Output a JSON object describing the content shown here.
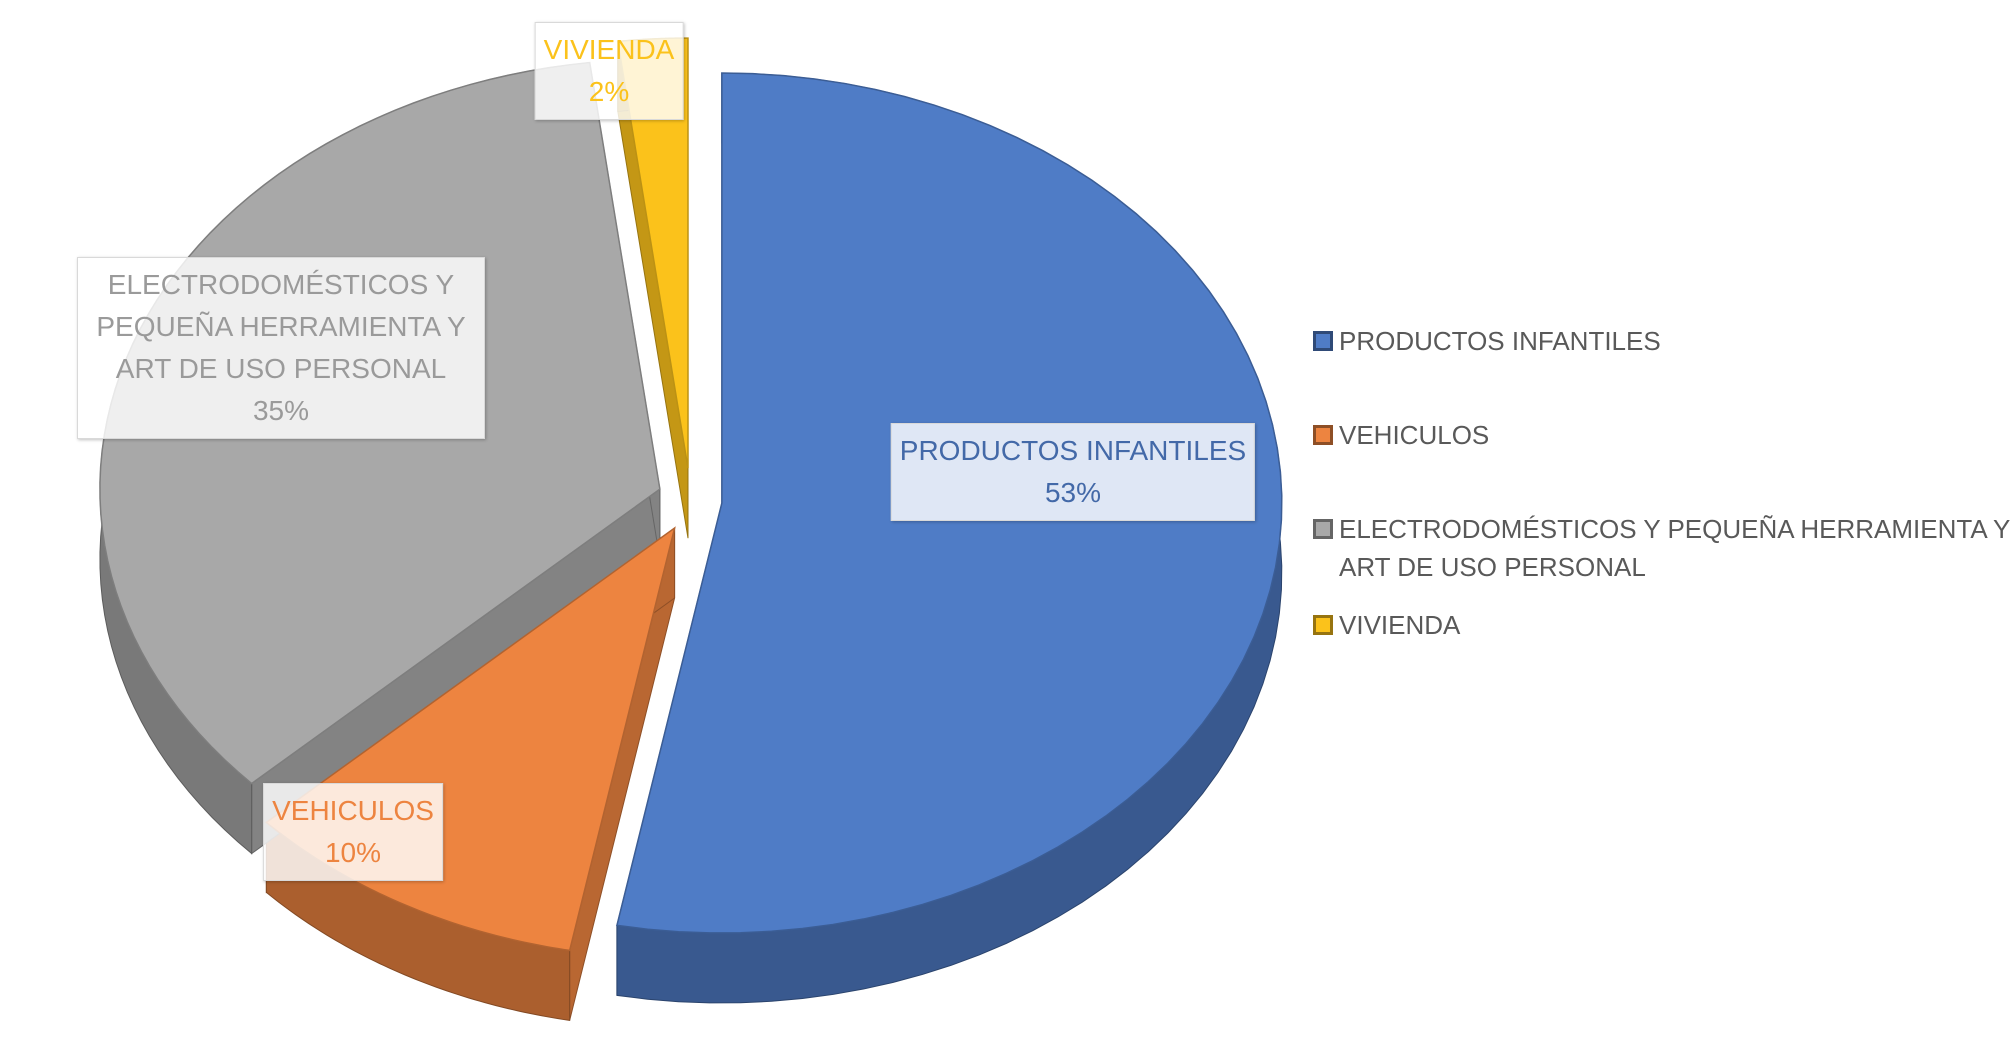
{
  "chart_data": {
    "type": "pie",
    "categories": [
      "PRODUCTOS INFANTILES",
      "VEHICULOS",
      "ELECTRODOMÉSTICOS Y PEQUEÑA HERRAMIENTA Y ART DE USO PERSONAL",
      "VIVIENDA"
    ],
    "values": [
      53,
      10,
      35,
      2
    ],
    "value_labels": [
      "53%",
      "10%",
      "35%",
      "2%"
    ],
    "colors": [
      "#4f7cc6",
      "#ed8440",
      "#a8a8a8",
      "#fbc21b"
    ],
    "legend": "right"
  }
}
